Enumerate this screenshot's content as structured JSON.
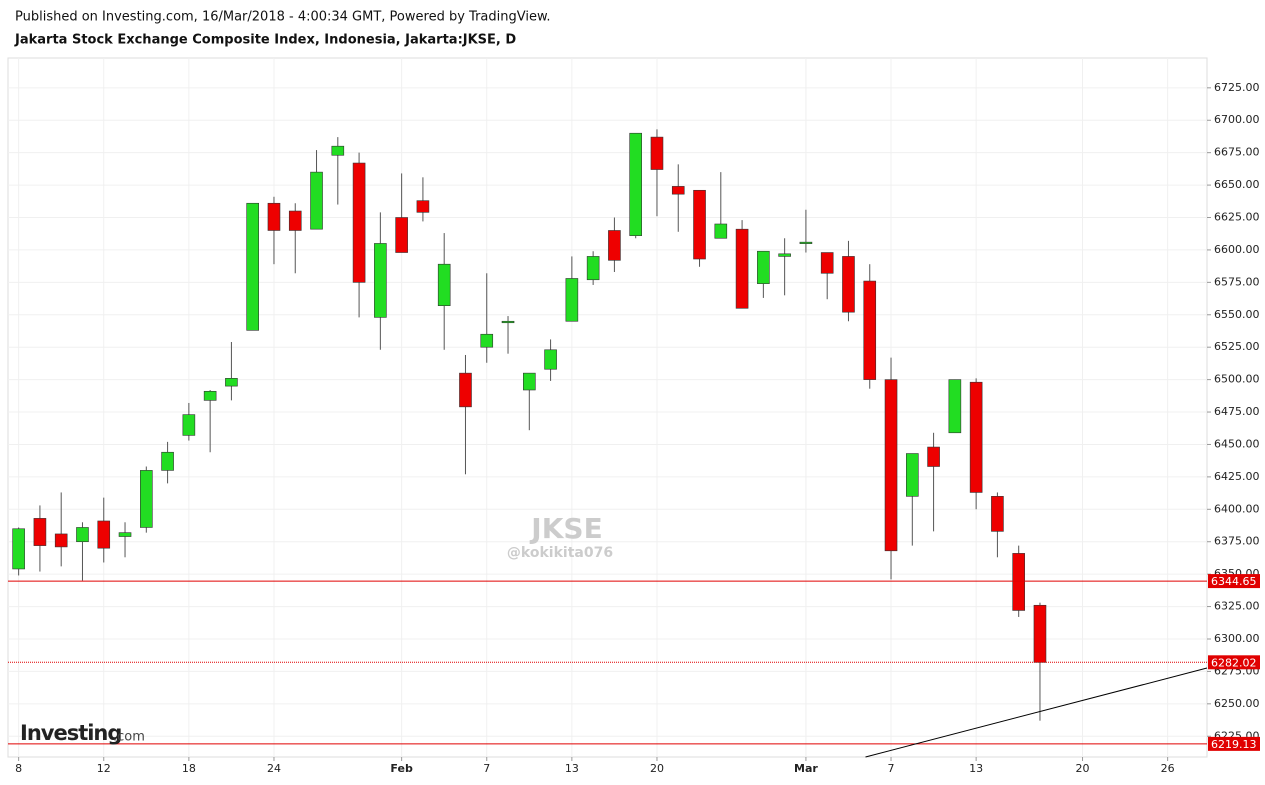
{
  "header": {
    "published": "Published on Investing.com, 16/Mar/2018 - 4:00:34 GMT, Powered by TradingView.",
    "logo": "Investing",
    "logo_suffix": ".com"
  },
  "chart_data": {
    "type": "candlestick",
    "title": "Jakarta Stock Exchange Composite Index, Indonesia, Jakarta:JKSE, D",
    "watermark": "JKSE",
    "watermark_sub": "@kokikita076",
    "x": [
      0,
      1,
      2,
      3,
      4,
      5,
      6,
      7,
      8,
      9,
      10,
      11,
      12,
      13,
      14,
      15,
      16,
      17,
      18,
      19,
      20,
      21,
      22,
      23,
      24,
      25,
      26,
      27,
      28,
      29,
      30,
      31,
      32,
      33,
      34,
      35,
      36,
      37,
      38,
      39,
      40,
      41,
      42,
      43,
      44,
      45,
      46,
      47,
      48
    ],
    "open": [
      6354,
      6393,
      6381,
      6375,
      6391,
      6379,
      6386,
      6430,
      6457,
      6484,
      6495,
      6538,
      6636,
      6630,
      6616,
      6673,
      6667,
      6548,
      6625,
      6638,
      6557,
      6505,
      6525,
      6544,
      6492,
      6508,
      6545,
      6577,
      6615,
      6611,
      6687,
      6649,
      6646,
      6609,
      6616,
      6574,
      6595,
      6605,
      6598,
      6595,
      6576,
      6500,
      6410,
      6448,
      6459,
      6498,
      6410,
      6366,
      6326
    ],
    "high": [
      6386,
      6403,
      6413,
      6390,
      6409,
      6390,
      6433,
      6452,
      6482,
      6492,
      6529,
      6636,
      6641,
      6636,
      6677,
      6687,
      6675,
      6629,
      6659,
      6656,
      6613,
      6519,
      6582,
      6549,
      6505,
      6531,
      6595,
      6599,
      6625,
      6690,
      6693,
      6666,
      6646,
      6660,
      6623,
      6599,
      6609,
      6631,
      6598,
      6607,
      6589,
      6517,
      6443,
      6459,
      6500,
      6501,
      6413,
      6372,
      6328
    ],
    "low": [
      6349,
      6352,
      6356,
      6345,
      6359,
      6363,
      6382,
      6420,
      6453,
      6444,
      6484,
      6538,
      6589,
      6582,
      6616,
      6635,
      6548,
      6523,
      6598,
      6622,
      6523,
      6427,
      6513,
      6520,
      6461,
      6499,
      6545,
      6573,
      6583,
      6609,
      6626,
      6614,
      6587,
      6609,
      6555,
      6563,
      6565,
      6598,
      6562,
      6545,
      6493,
      6346,
      6372,
      6383,
      6459,
      6400,
      6363,
      6317,
      6237
    ],
    "close": [
      6385,
      6372,
      6371,
      6386,
      6370,
      6382,
      6430,
      6444,
      6473,
      6491,
      6501,
      6636,
      6615,
      6615,
      6660,
      6680,
      6575,
      6605,
      6598,
      6629,
      6589,
      6479,
      6535,
      6545,
      6505,
      6523,
      6578,
      6595,
      6592,
      6690,
      6662,
      6643,
      6593,
      6620,
      6555,
      6599,
      6597,
      6606,
      6582,
      6552,
      6500,
      6368,
      6443,
      6433,
      6500,
      6413,
      6383,
      6322,
      6282
    ],
    "up_color": "#22dd22",
    "down_color": "#ee0000",
    "xlim": [
      -0.5,
      55.85
    ],
    "xticks": [
      {
        "value": 0,
        "label": "8"
      },
      {
        "value": 4,
        "label": "12"
      },
      {
        "value": 8,
        "label": "18"
      },
      {
        "value": 12,
        "label": "24"
      },
      {
        "value": 18,
        "label": "Feb"
      },
      {
        "value": 22,
        "label": "7"
      },
      {
        "value": 26,
        "label": "13"
      },
      {
        "value": 30,
        "label": "20"
      },
      {
        "value": 37,
        "label": "Mar"
      },
      {
        "value": 41,
        "label": "7"
      },
      {
        "value": 45,
        "label": "13"
      },
      {
        "value": 50,
        "label": "20"
      },
      {
        "value": 54,
        "label": "26"
      }
    ],
    "ylim": [
      6209,
      6748
    ],
    "yticks": [
      {
        "value": 6225,
        "label": "6225.00"
      },
      {
        "value": 6250,
        "label": "6250.00"
      },
      {
        "value": 6275,
        "label": "6275.00"
      },
      {
        "value": 6300,
        "label": "6300.00"
      },
      {
        "value": 6325,
        "label": "6325.00"
      },
      {
        "value": 6350,
        "label": "6350.00"
      },
      {
        "value": 6375,
        "label": "6375.00"
      },
      {
        "value": 6400,
        "label": "6400.00"
      },
      {
        "value": 6425,
        "label": "6425.00"
      },
      {
        "value": 6450,
        "label": "6450.00"
      },
      {
        "value": 6475,
        "label": "6475.00"
      },
      {
        "value": 6500,
        "label": "6500.00"
      },
      {
        "value": 6525,
        "label": "6525.00"
      },
      {
        "value": 6550,
        "label": "6550.00"
      },
      {
        "value": 6575,
        "label": "6575.00"
      },
      {
        "value": 6600,
        "label": "6600.00"
      },
      {
        "value": 6625,
        "label": "6625.00"
      },
      {
        "value": 6650,
        "label": "6650.00"
      },
      {
        "value": 6675,
        "label": "6675.00"
      },
      {
        "value": 6700,
        "label": "6700.00"
      },
      {
        "value": 6725,
        "label": "6725.00"
      }
    ],
    "grid": true,
    "levels": [
      {
        "value": 6344.65,
        "style": "solid",
        "color": "#e00000"
      },
      {
        "value": 6282.02,
        "style": "dotted",
        "color": "#e00000"
      },
      {
        "value": 6219.13,
        "style": "solid",
        "color": "#e00000"
      }
    ],
    "trendline": {
      "x": [
        39.8,
        55.85
      ],
      "y": [
        6209,
        6277.6
      ],
      "color": "#000000"
    }
  }
}
